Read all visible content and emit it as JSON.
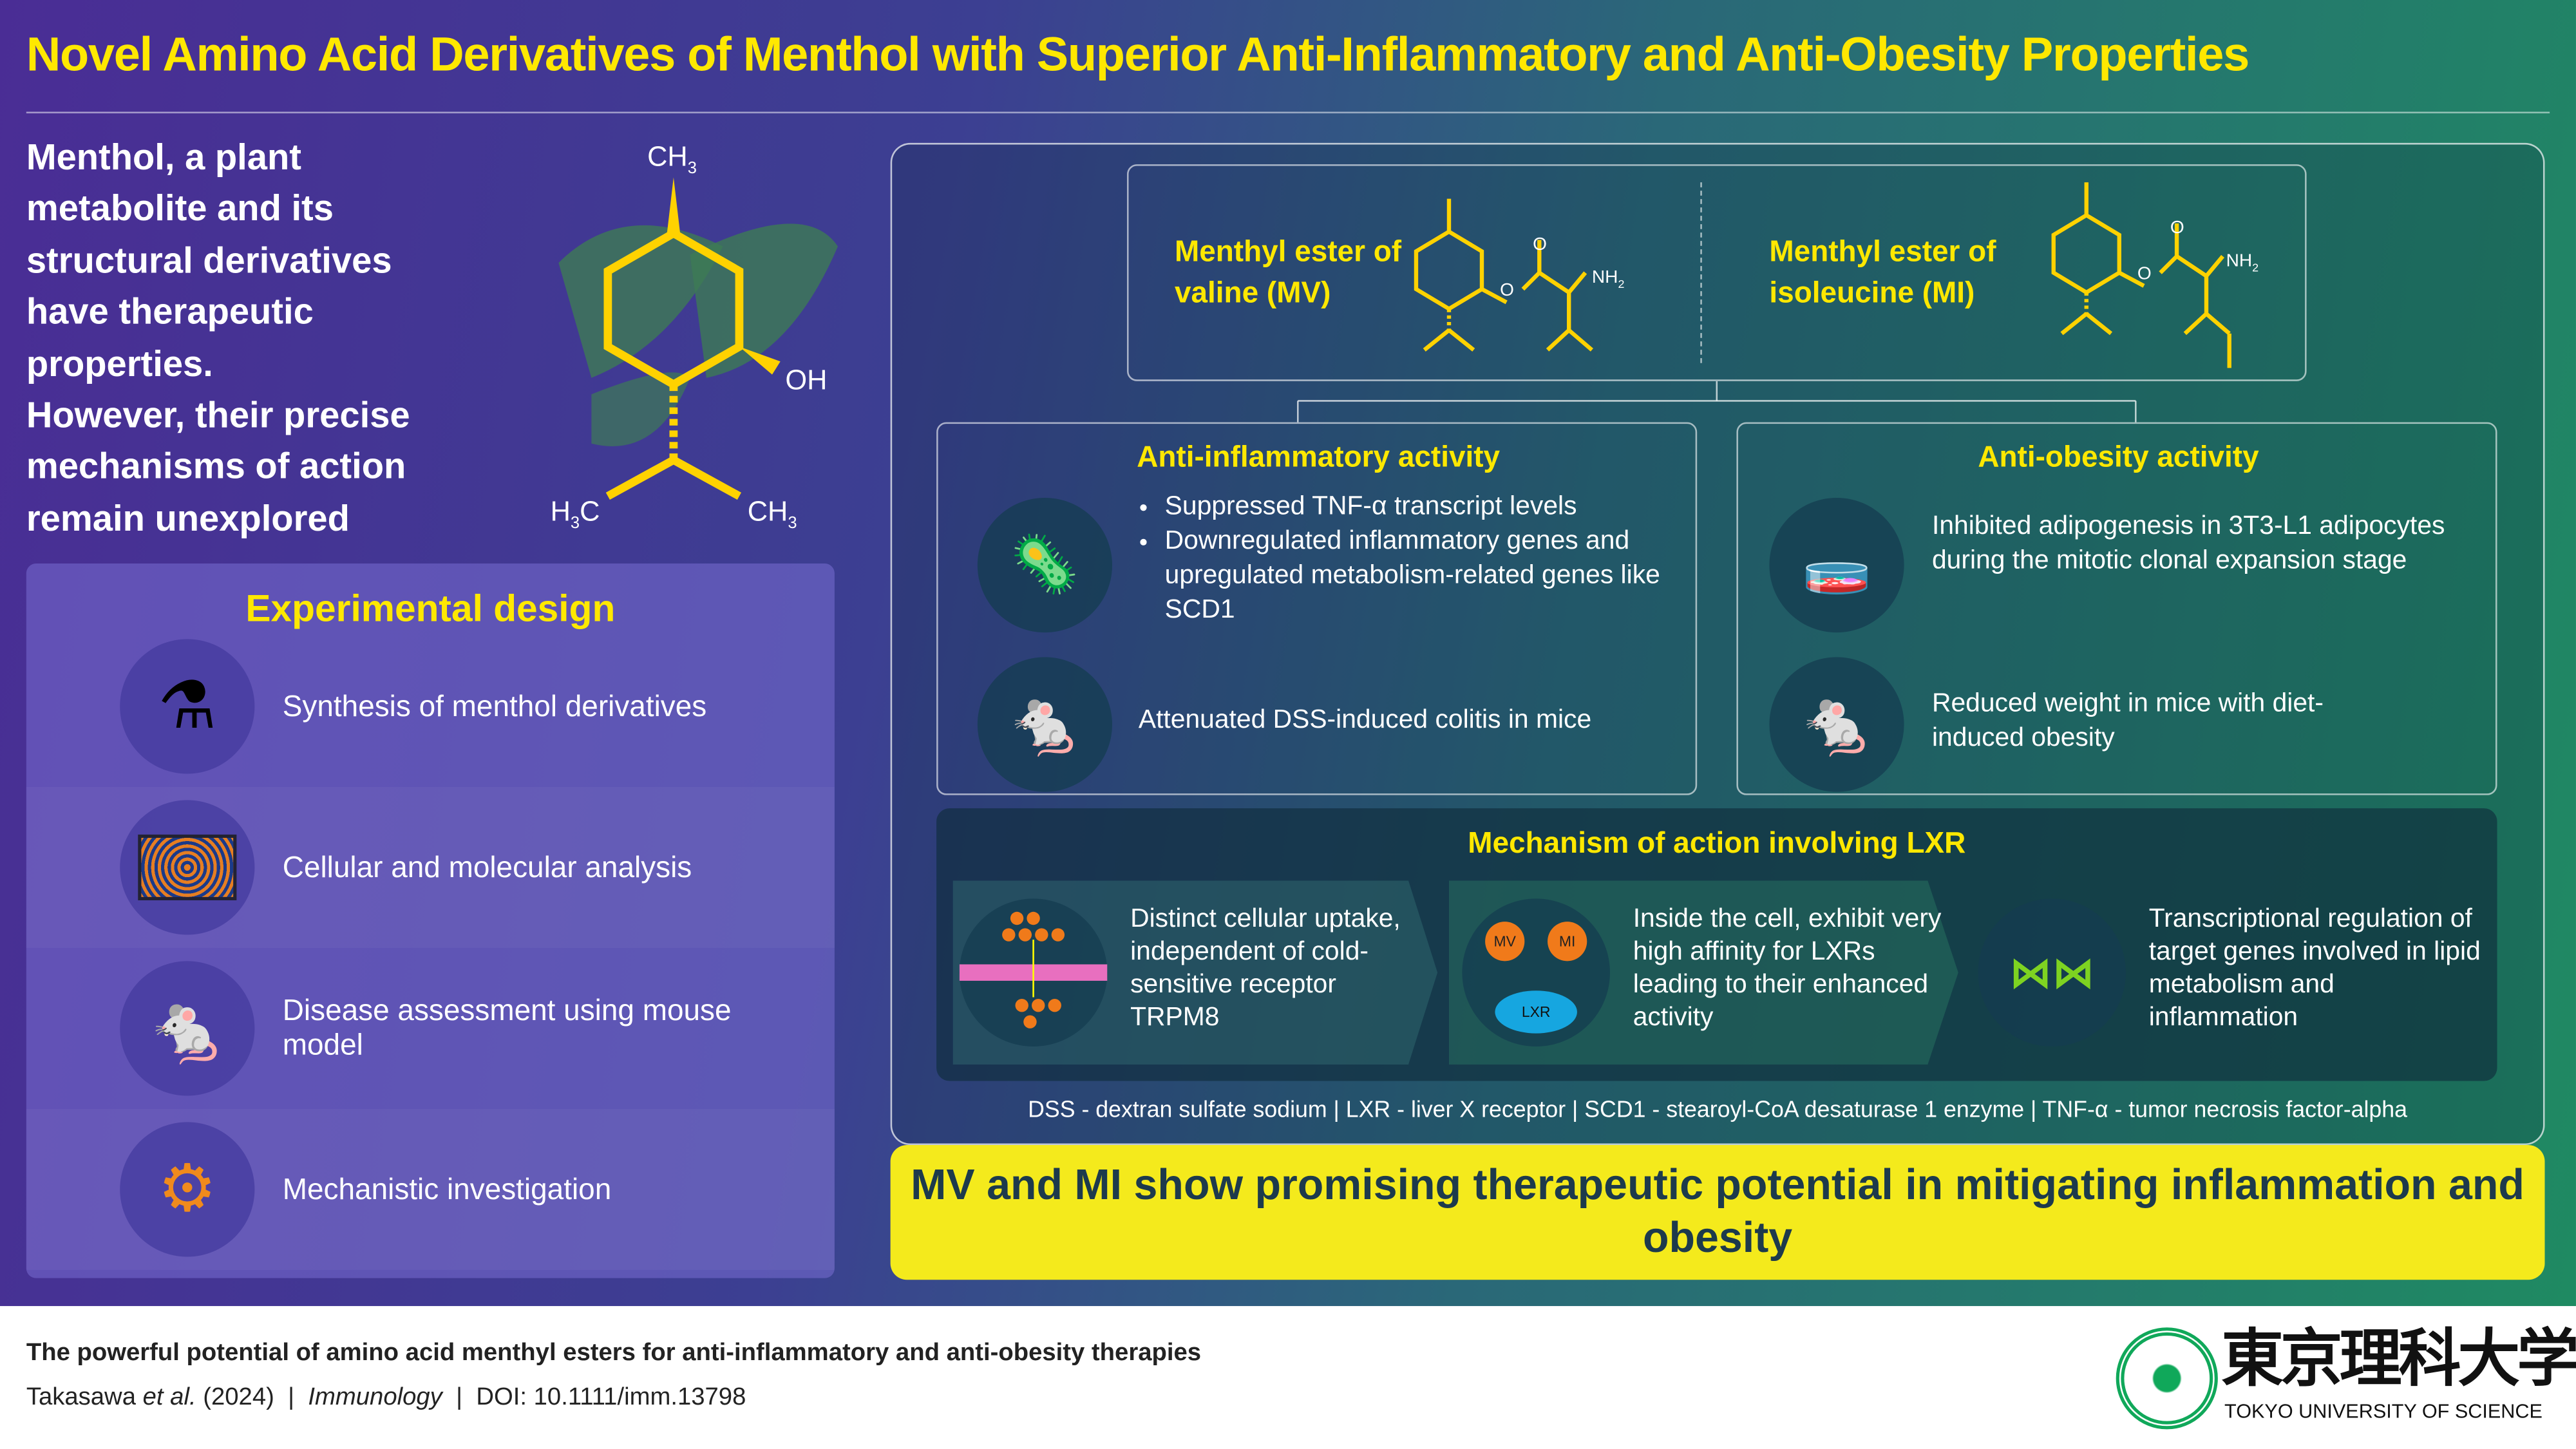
{
  "title": "Novel Amino Acid Derivatives of Menthol with Superior Anti-Inflammatory and Anti-Obesity Properties",
  "intro": {
    "lines": [
      "Menthol, a plant",
      "metabolite and its",
      "structural derivatives",
      "have therapeutic",
      "properties.",
      "However, their precise",
      "mechanisms of action",
      "remain unexplored"
    ]
  },
  "menthol": {
    "ch3_top": "CH",
    "oh": "OH",
    "h3c": "H",
    "h3c_c": "C",
    "ch3_right": "CH",
    "sub3": "3"
  },
  "experimental": {
    "title": "Experimental design",
    "items": [
      {
        "label": "Synthesis of menthol derivatives",
        "icon": "flask-icon"
      },
      {
        "label": "Cellular and molecular analysis",
        "icon": "well-plate-icon"
      },
      {
        "label": "Disease assessment using mouse model",
        "icon": "mouse-icon"
      },
      {
        "label": "Mechanistic investigation",
        "icon": "gears-icon"
      }
    ]
  },
  "compounds": [
    {
      "name": "Menthyl ester of valine (MV)",
      "o": "O",
      "o2": "O",
      "nh2": "NH",
      "sub": "2"
    },
    {
      "name": "Menthyl ester of isoleucine (MI)",
      "o": "O",
      "o2": "O",
      "nh2": "NH",
      "sub": "2"
    }
  ],
  "anti_inflammatory": {
    "title": "Anti-inflammatory activity",
    "bullets": [
      "Suppressed TNF-α transcript levels",
      "Downregulated inflammatory genes and upregulated metabolism-related genes like SCD1"
    ],
    "mouse": "Attenuated DSS-induced colitis in mice"
  },
  "anti_obesity": {
    "title": "Anti-obesity activity",
    "cells": "Inhibited adipogenesis in 3T3-L1 adipocytes during the mitotic clonal expansion stage",
    "mouse": "Reduced weight in mice with diet-induced obesity"
  },
  "mechanism": {
    "title": "Mechanism of action involving LXR",
    "steps": [
      "Distinct cellular uptake, independent of cold-sensitive receptor TRPM8",
      "Inside the cell, exhibit very high affinity for LXRs leading to their enhanced activity",
      "Transcriptional regulation of target genes involved in lipid metabolism and inflammation"
    ],
    "mv": "MV",
    "mi": "MI",
    "lxr": "LXR"
  },
  "abbreviations": "DSS - dextran sulfate sodium | LXR - liver X receptor | SCD1 - stearoyl-CoA desaturase 1 enzyme | TNF-α - tumor necrosis factor-alpha",
  "conclusion": "MV and MI show promising therapeutic potential in mitigating inflammation and obesity",
  "footer": {
    "headline": "The powerful potential of amino acid menthyl esters for anti-inflammatory and anti-obesity therapies",
    "authors": "Takasawa",
    "etal": "et al.",
    "year": "(2024)",
    "sep": "|",
    "journal": "Immunology",
    "doi": "DOI: 10.1111/imm.13798"
  },
  "logo": {
    "kanji": "東京理科大学",
    "english": "TOKYO UNIVERSITY OF SCIENCE",
    "seal": "TOKYO UNIVERSITY OF SCIENCE since 1881"
  },
  "colors": {
    "accent_yellow": "#ffe800",
    "purple": "#4a2d95",
    "green": "#1f8a62",
    "conclusion_bg": "#f4ea1c"
  }
}
